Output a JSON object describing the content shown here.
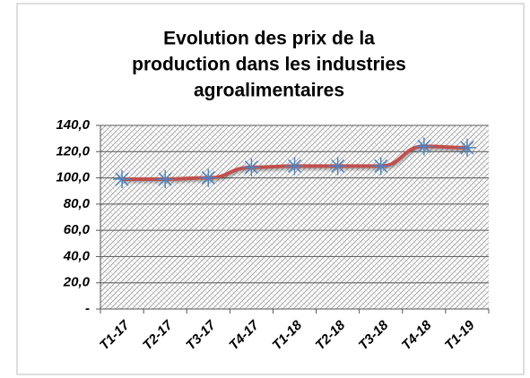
{
  "chart_data": {
    "type": "line",
    "title": [
      "Evolution des prix de la",
      "production dans les industries",
      "agroalimentaires"
    ],
    "categories": [
      "T1-17",
      "T2-17",
      "T3-17",
      "T4-17",
      "T1-18",
      "T2-18",
      "T3-18",
      "T4-18",
      "T1-19"
    ],
    "series": [
      {
        "color": "#c0504d",
        "marker_color": "#4f81bd",
        "values": [
          99,
          99,
          100,
          108,
          109,
          109,
          109,
          124,
          123
        ]
      }
    ],
    "ylim": [
      0,
      140
    ],
    "yticks": [
      {
        "value": 0,
        "label": "-"
      },
      {
        "value": 20,
        "label": "20,0"
      },
      {
        "value": 40,
        "label": "40,0"
      },
      {
        "value": 60,
        "label": "60,0"
      },
      {
        "value": 80,
        "label": "80,0"
      },
      {
        "value": 100,
        "label": "100,0"
      },
      {
        "value": 120,
        "label": "120,0"
      },
      {
        "value": 140,
        "label": "140,0"
      }
    ],
    "grid": true
  }
}
